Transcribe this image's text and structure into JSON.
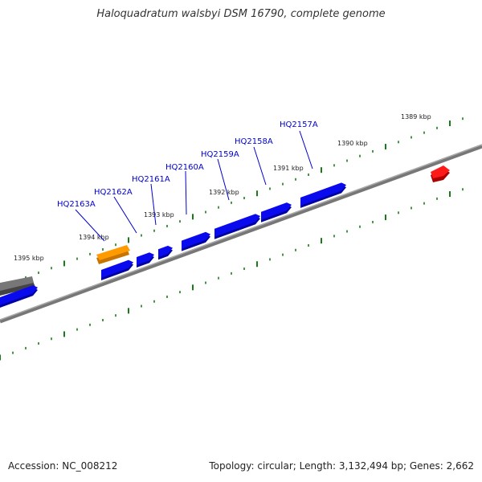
{
  "title": "Haloquadratum walsbyi DSM 16790, complete genome",
  "footer": {
    "accession": "Accession: NC_008212",
    "summary": "Topology: circular; Length: 3,132,494 bp; Genes: 2,662"
  },
  "colors": {
    "gene_blue": "#0a0aee",
    "gene_orange": "#ff9a00",
    "gene_gray": "#666666",
    "gene_red": "#ee0000",
    "backbone": "#777777",
    "tick_green": "#1a7a1a",
    "label_blue": "#0000cc"
  },
  "position_labels": [
    "1389 kbp",
    "1390 kbp",
    "1391 kbp",
    "1392 kbp",
    "1393 kbp",
    "1394 kbp",
    "1395 kbp"
  ],
  "gene_labels": [
    "HQ2157A",
    "HQ2158A",
    "HQ2159A",
    "HQ2160A",
    "HQ2161A",
    "HQ2162A",
    "HQ2163A"
  ]
}
